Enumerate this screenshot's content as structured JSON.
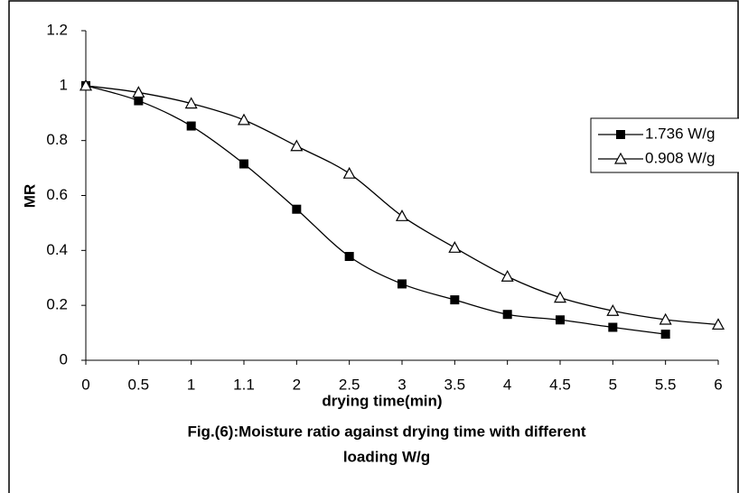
{
  "chart_data": {
    "type": "line",
    "caption": [
      "Fig.(6):Moisture ratio against drying time with different",
      "loading W/g"
    ],
    "xlabel": "drying time(min)",
    "ylabel": "MR",
    "categories": [
      "0",
      "0.5",
      "1",
      "1.1",
      "2",
      "2.5",
      "3",
      "3.5",
      "4",
      "4.5",
      "5",
      "5.5",
      "6"
    ],
    "series": [
      {
        "name": "1.736 W/g",
        "color": "#000000",
        "marker": "square",
        "values": [
          1.0,
          0.945,
          0.853,
          0.715,
          0.55,
          0.378,
          0.278,
          0.22,
          0.167,
          0.147,
          0.12,
          0.095,
          null
        ]
      },
      {
        "name": "0.908 W/g",
        "color": "#000000",
        "marker": "triangle",
        "values": [
          1.0,
          0.975,
          0.935,
          0.875,
          0.78,
          0.68,
          0.525,
          0.41,
          0.305,
          0.228,
          0.18,
          0.148,
          0.13
        ]
      }
    ],
    "ylim": [
      0,
      1.2
    ],
    "yticks": [
      0,
      0.2,
      0.4,
      0.6,
      0.8,
      1,
      1.2
    ],
    "grid": false,
    "legend": "right"
  }
}
